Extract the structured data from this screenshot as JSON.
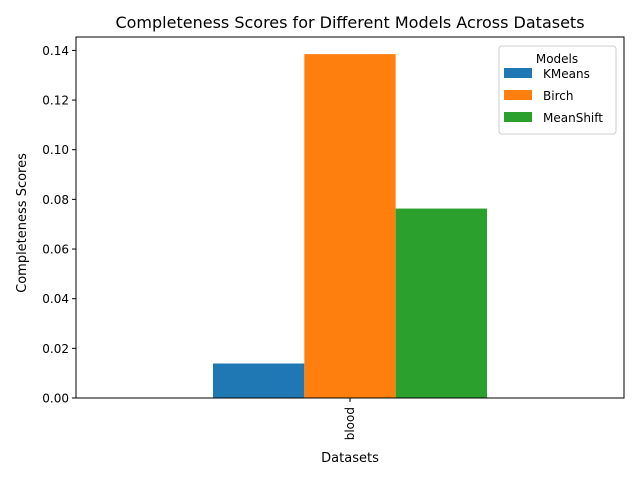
{
  "chart_data": {
    "type": "bar",
    "title": "Completeness Scores for Different Models Across Datasets",
    "xlabel": "Datasets",
    "ylabel": "Completeness Scores",
    "categories": [
      "blood"
    ],
    "series": [
      {
        "name": "KMeans",
        "values": [
          0.0139
        ],
        "color": "#1f77b4"
      },
      {
        "name": "Birch",
        "values": [
          0.1385
        ],
        "color": "#ff7f0e"
      },
      {
        "name": "MeanShift",
        "values": [
          0.0763
        ],
        "color": "#2ca02c"
      }
    ],
    "ylim": [
      0,
      0.1454
    ],
    "yticks": [
      "0.00",
      "0.02",
      "0.04",
      "0.06",
      "0.08",
      "0.10",
      "0.12",
      "0.14"
    ],
    "legend": {
      "title": "Models",
      "placement": "upper right"
    },
    "grid": false
  }
}
